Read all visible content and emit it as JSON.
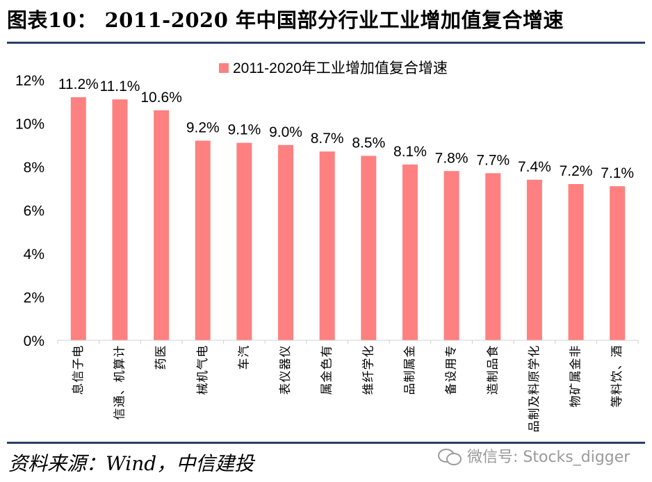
{
  "header": {
    "title": "图表10：  2011-2020 年中国部分行业工业增加值复合增速"
  },
  "footer": {
    "source": "资料来源：Wind，中信建投",
    "watermark": "微信号: Stocks_digger"
  },
  "colors": {
    "bar": "#ff8080",
    "rule": "#2a3d66"
  },
  "chart_data": {
    "type": "bar",
    "title": "",
    "xlabel": "",
    "ylabel": "",
    "ylim": [
      0,
      12
    ],
    "yticks": [
      0,
      2,
      4,
      6,
      8,
      10,
      12
    ],
    "ytick_format": "%",
    "grid": false,
    "legend_position": "top-center",
    "categories": [
      "电子信息",
      "计算机、通信",
      "医药",
      "电气机械",
      "汽车",
      "仪器仪表",
      "有色金属",
      "化学纤维",
      "金属制品",
      "专用设备",
      "食品制造",
      "化学原料及制品",
      "非金属矿物",
      "酒、饮料等"
    ],
    "series": [
      {
        "name": "2011-2020年工业增加值复合增速",
        "values": [
          11.2,
          11.1,
          10.6,
          9.2,
          9.1,
          9.0,
          8.7,
          8.5,
          8.1,
          7.8,
          7.7,
          7.4,
          7.2,
          7.1
        ],
        "labels": [
          "11.2%",
          "11.1%",
          "10.6%",
          "9.2%",
          "9.1%",
          "9.0%",
          "8.7%",
          "8.5%",
          "8.1%",
          "7.8%",
          "7.7%",
          "7.4%",
          "7.2%",
          "7.1%"
        ]
      }
    ]
  }
}
